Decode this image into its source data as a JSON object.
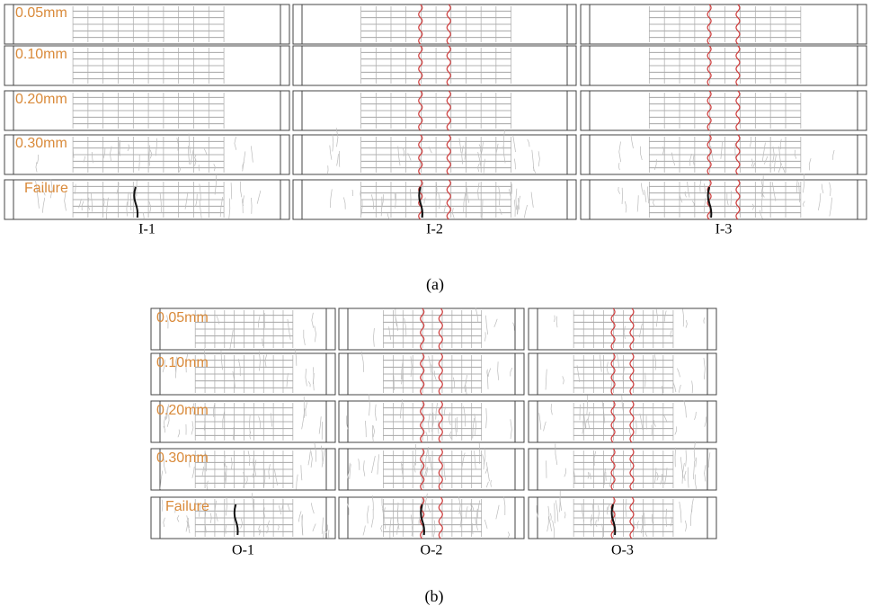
{
  "panels": [
    {
      "row_labels": [
        "0.05mm",
        "0.10mm",
        "0.20mm",
        "0.30mm",
        "Failure"
      ],
      "specimens": [
        "I-1",
        "I-2",
        "I-3"
      ],
      "caption": "(a)"
    },
    {
      "row_labels": [
        "0.05mm",
        "0.10mm",
        "0.20mm",
        "0.30mm",
        "Failure"
      ],
      "specimens": [
        "O-1",
        "O-2",
        "O-3"
      ],
      "caption": "(b)"
    }
  ]
}
